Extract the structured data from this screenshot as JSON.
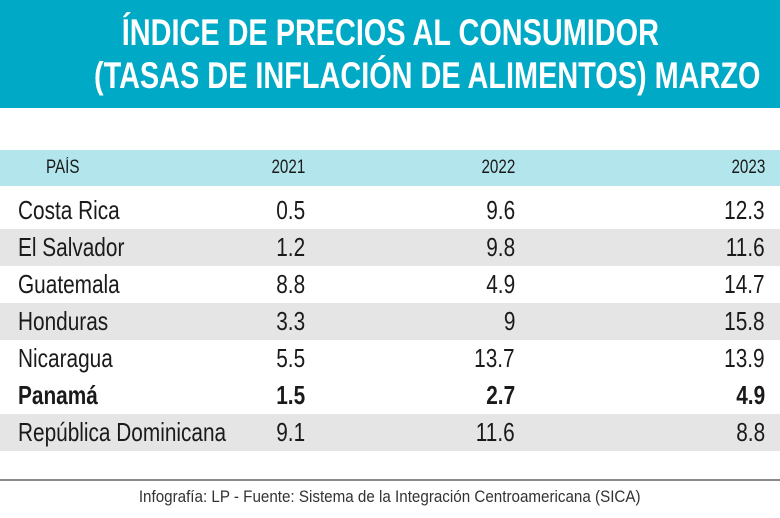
{
  "title": {
    "line1": "ÍNDICE DE PRECIOS AL CONSUMIDOR",
    "line2": "(TASAS DE INFLACIÓN DE ALIMENTOS) MARZO"
  },
  "colors": {
    "title_bg": "#00a9c5",
    "header_bg": "#b2e5ec",
    "stripe": "#e5e5e6"
  },
  "chart_data": {
    "type": "table",
    "title": "ÍNDICE DE PRECIOS AL CONSUMIDOR (TASAS DE INFLACIÓN DE ALIMENTOS) MARZO",
    "columns": [
      "PAÍS",
      "2021",
      "2022",
      "2023"
    ],
    "rows": [
      {
        "country": "Costa Rica",
        "v2021": "0.5",
        "v2022": "9.6",
        "v2023": "12.3"
      },
      {
        "country": "El Salvador",
        "v2021": "1.2",
        "v2022": "9.8",
        "v2023": "11.6"
      },
      {
        "country": "Guatemala",
        "v2021": "8.8",
        "v2022": "4.9",
        "v2023": "14.7"
      },
      {
        "country": "Honduras",
        "v2021": "3.3",
        "v2022": "9",
        "v2023": "15.8"
      },
      {
        "country": "Nicaragua",
        "v2021": "5.5",
        "v2022": "13.7",
        "v2023": "13.9"
      },
      {
        "country": "Panamá",
        "v2021": "1.5",
        "v2022": "2.7",
        "v2023": "4.9",
        "highlighted": true
      },
      {
        "country": "República Dominicana",
        "v2021": "9.1",
        "v2022": "11.6",
        "v2023": "8.8"
      }
    ]
  },
  "caption": "Infografía: LP - Fuente: Sistema de la Integración Centroamericana (SICA)"
}
